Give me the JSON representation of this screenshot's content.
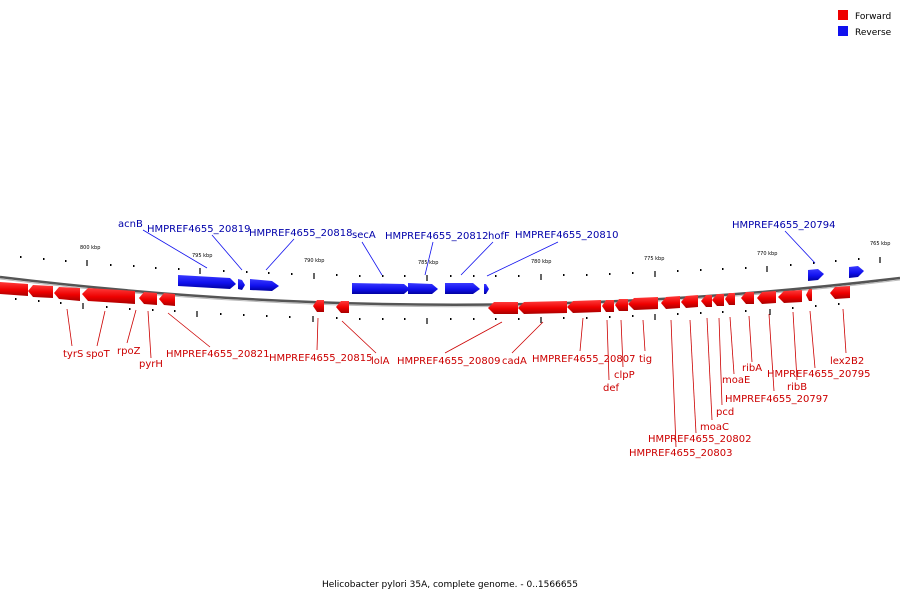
{
  "legend": {
    "forward": {
      "label": "Forward",
      "color": "#ee0000"
    },
    "reverse": {
      "label": "Reverse",
      "color": "#1111ee"
    }
  },
  "scale_labels": [
    "800 kbp",
    "795 kbp",
    "790 kbp",
    "785 kbp",
    "780 kbp",
    "775 kbp",
    "770 kbp",
    "765 kbp"
  ],
  "caption": "Helicobacter pylori 35A, complete genome. - 0..1566655",
  "reverse_genes": [
    "acnB",
    "HMPREF4655_20819",
    "HMPREF4655_20818",
    "secA",
    "HMPREF4655_20812",
    "hofF",
    "HMPREF4655_20810",
    "HMPREF4655_20794"
  ],
  "forward_genes": [
    "tyrS",
    "spoT",
    "rpoZ",
    "pyrH",
    "HMPREF4655_20821",
    "HMPREF4655_20815",
    "lolA",
    "HMPREF4655_20809",
    "cadA",
    "HMPREF4655_20807",
    "def",
    "clpP",
    "tig",
    "HMPREF4655_20802",
    "HMPREF4655_20803",
    "moaC",
    "pcd",
    "moaE",
    "HMPREF4655_20797",
    "ribA",
    "ribB",
    "HMPREF4655_20795",
    "lex2B2"
  ]
}
